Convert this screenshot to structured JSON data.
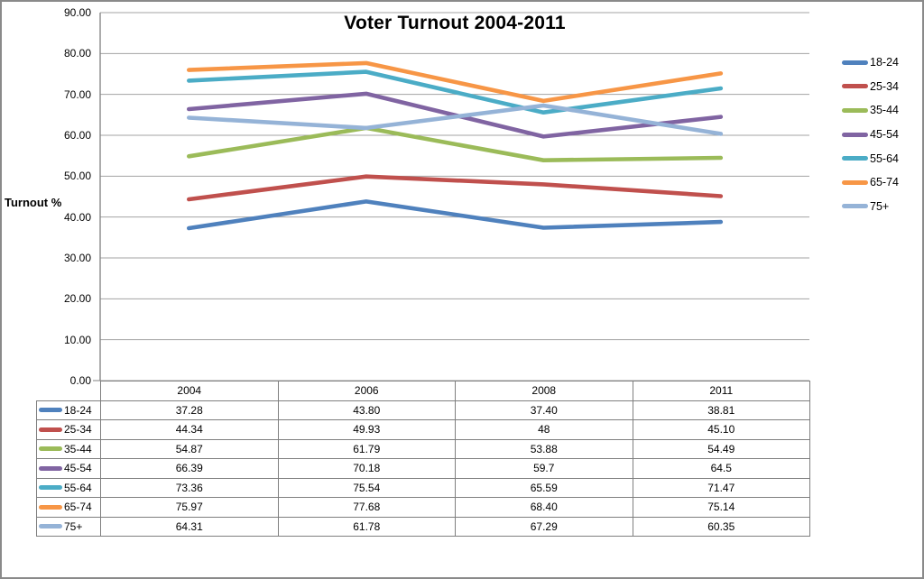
{
  "chart_data": {
    "type": "line",
    "title": "Voter Turnout 2004-2011",
    "xlabel": "",
    "ylabel": "Turnout %",
    "ylim": [
      0,
      90
    ],
    "yticks": [
      "90.00",
      "80.00",
      "70.00",
      "60.00",
      "50.00",
      "40.00",
      "30.00",
      "20.00",
      "10.00",
      "0.00"
    ],
    "grid": true,
    "legend_position": "right",
    "categories": [
      "2004",
      "2006",
      "2008",
      "2011"
    ],
    "series": [
      {
        "name": "18-24",
        "color": "#4F81BD",
        "values": [
          37.28,
          43.8,
          37.4,
          38.81
        ],
        "display": [
          "37.28",
          "43.80",
          "37.40",
          "38.81"
        ]
      },
      {
        "name": "25-34",
        "color": "#C0504D",
        "values": [
          44.34,
          49.93,
          48,
          45.1
        ],
        "display": [
          "44.34",
          "49.93",
          "48",
          "45.10"
        ]
      },
      {
        "name": "35-44",
        "color": "#9BBB59",
        "values": [
          54.87,
          61.79,
          53.88,
          54.49
        ],
        "display": [
          "54.87",
          "61.79",
          "53.88",
          "54.49"
        ]
      },
      {
        "name": "45-54",
        "color": "#8064A2",
        "values": [
          66.39,
          70.18,
          59.7,
          64.5
        ],
        "display": [
          "66.39",
          "70.18",
          "59.7",
          "64.5"
        ]
      },
      {
        "name": "55-64",
        "color": "#4BACC6",
        "values": [
          73.36,
          75.54,
          65.59,
          71.47
        ],
        "display": [
          "73.36",
          "75.54",
          "65.59",
          "71.47"
        ]
      },
      {
        "name": "65-74",
        "color": "#F79646",
        "values": [
          75.97,
          77.68,
          68.4,
          75.14
        ],
        "display": [
          "75.97",
          "77.68",
          "68.40",
          "75.14"
        ]
      },
      {
        "name": "75+",
        "color": "#95B3D7",
        "values": [
          64.31,
          61.78,
          67.29,
          60.35
        ],
        "display": [
          "64.31",
          "61.78",
          "67.29",
          "60.35"
        ]
      }
    ],
    "gridline_color": "#A3A3A3",
    "axis_color": "#808080"
  }
}
